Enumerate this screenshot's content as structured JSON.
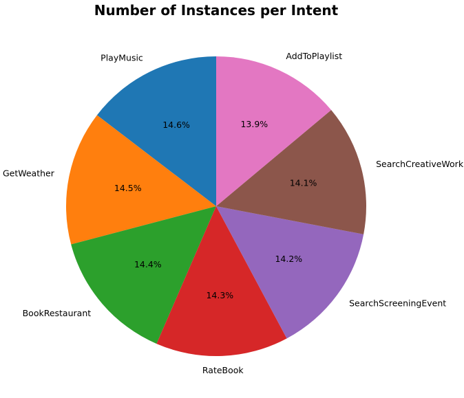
{
  "chart_data": {
    "type": "pie",
    "title": "Number of Instances per Intent",
    "start_angle_deg": 90,
    "direction": "counterclockwise",
    "categories": [
      "PlayMusic",
      "GetWeather",
      "BookRestaurant",
      "RateBook",
      "SearchScreeningEvent",
      "SearchCreativeWork",
      "AddToPlaylist"
    ],
    "values": [
      14.6,
      14.5,
      14.4,
      14.3,
      14.2,
      14.1,
      13.9
    ],
    "value_labels": [
      "14.6%",
      "14.5%",
      "14.4%",
      "14.3%",
      "14.2%",
      "14.1%",
      "13.9%"
    ],
    "colors": [
      "#1f77b4",
      "#ff7f0e",
      "#2ca02c",
      "#d62728",
      "#9467bd",
      "#8c564b",
      "#e377c2"
    ]
  }
}
